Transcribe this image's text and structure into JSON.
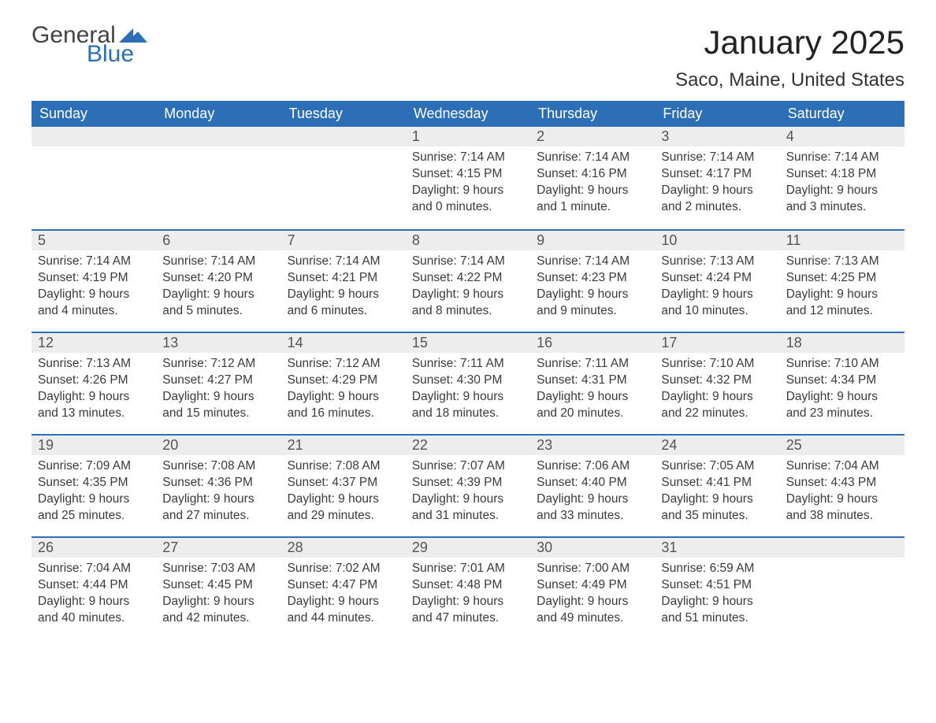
{
  "brand": {
    "general": "General",
    "blue": "Blue",
    "accent_color": "#2d6fb6"
  },
  "title": "January 2025",
  "location": "Saco, Maine, United States",
  "colors": {
    "header_bg": "#2d6fb6",
    "header_text": "#ffffff",
    "daynum_bg": "#ededed",
    "body_text": "#3a3a3a",
    "page_bg": "#ffffff"
  },
  "day_headers": [
    "Sunday",
    "Monday",
    "Tuesday",
    "Wednesday",
    "Thursday",
    "Friday",
    "Saturday"
  ],
  "weeks": [
    [
      null,
      null,
      null,
      {
        "n": "1",
        "sunrise": "7:14 AM",
        "sunset": "4:15 PM",
        "daylight": "9 hours and 0 minutes."
      },
      {
        "n": "2",
        "sunrise": "7:14 AM",
        "sunset": "4:16 PM",
        "daylight": "9 hours and 1 minute."
      },
      {
        "n": "3",
        "sunrise": "7:14 AM",
        "sunset": "4:17 PM",
        "daylight": "9 hours and 2 minutes."
      },
      {
        "n": "4",
        "sunrise": "7:14 AM",
        "sunset": "4:18 PM",
        "daylight": "9 hours and 3 minutes."
      }
    ],
    [
      {
        "n": "5",
        "sunrise": "7:14 AM",
        "sunset": "4:19 PM",
        "daylight": "9 hours and 4 minutes."
      },
      {
        "n": "6",
        "sunrise": "7:14 AM",
        "sunset": "4:20 PM",
        "daylight": "9 hours and 5 minutes."
      },
      {
        "n": "7",
        "sunrise": "7:14 AM",
        "sunset": "4:21 PM",
        "daylight": "9 hours and 6 minutes."
      },
      {
        "n": "8",
        "sunrise": "7:14 AM",
        "sunset": "4:22 PM",
        "daylight": "9 hours and 8 minutes."
      },
      {
        "n": "9",
        "sunrise": "7:14 AM",
        "sunset": "4:23 PM",
        "daylight": "9 hours and 9 minutes."
      },
      {
        "n": "10",
        "sunrise": "7:13 AM",
        "sunset": "4:24 PM",
        "daylight": "9 hours and 10 minutes."
      },
      {
        "n": "11",
        "sunrise": "7:13 AM",
        "sunset": "4:25 PM",
        "daylight": "9 hours and 12 minutes."
      }
    ],
    [
      {
        "n": "12",
        "sunrise": "7:13 AM",
        "sunset": "4:26 PM",
        "daylight": "9 hours and 13 minutes."
      },
      {
        "n": "13",
        "sunrise": "7:12 AM",
        "sunset": "4:27 PM",
        "daylight": "9 hours and 15 minutes."
      },
      {
        "n": "14",
        "sunrise": "7:12 AM",
        "sunset": "4:29 PM",
        "daylight": "9 hours and 16 minutes."
      },
      {
        "n": "15",
        "sunrise": "7:11 AM",
        "sunset": "4:30 PM",
        "daylight": "9 hours and 18 minutes."
      },
      {
        "n": "16",
        "sunrise": "7:11 AM",
        "sunset": "4:31 PM",
        "daylight": "9 hours and 20 minutes."
      },
      {
        "n": "17",
        "sunrise": "7:10 AM",
        "sunset": "4:32 PM",
        "daylight": "9 hours and 22 minutes."
      },
      {
        "n": "18",
        "sunrise": "7:10 AM",
        "sunset": "4:34 PM",
        "daylight": "9 hours and 23 minutes."
      }
    ],
    [
      {
        "n": "19",
        "sunrise": "7:09 AM",
        "sunset": "4:35 PM",
        "daylight": "9 hours and 25 minutes."
      },
      {
        "n": "20",
        "sunrise": "7:08 AM",
        "sunset": "4:36 PM",
        "daylight": "9 hours and 27 minutes."
      },
      {
        "n": "21",
        "sunrise": "7:08 AM",
        "sunset": "4:37 PM",
        "daylight": "9 hours and 29 minutes."
      },
      {
        "n": "22",
        "sunrise": "7:07 AM",
        "sunset": "4:39 PM",
        "daylight": "9 hours and 31 minutes."
      },
      {
        "n": "23",
        "sunrise": "7:06 AM",
        "sunset": "4:40 PM",
        "daylight": "9 hours and 33 minutes."
      },
      {
        "n": "24",
        "sunrise": "7:05 AM",
        "sunset": "4:41 PM",
        "daylight": "9 hours and 35 minutes."
      },
      {
        "n": "25",
        "sunrise": "7:04 AM",
        "sunset": "4:43 PM",
        "daylight": "9 hours and 38 minutes."
      }
    ],
    [
      {
        "n": "26",
        "sunrise": "7:04 AM",
        "sunset": "4:44 PM",
        "daylight": "9 hours and 40 minutes."
      },
      {
        "n": "27",
        "sunrise": "7:03 AM",
        "sunset": "4:45 PM",
        "daylight": "9 hours and 42 minutes."
      },
      {
        "n": "28",
        "sunrise": "7:02 AM",
        "sunset": "4:47 PM",
        "daylight": "9 hours and 44 minutes."
      },
      {
        "n": "29",
        "sunrise": "7:01 AM",
        "sunset": "4:48 PM",
        "daylight": "9 hours and 47 minutes."
      },
      {
        "n": "30",
        "sunrise": "7:00 AM",
        "sunset": "4:49 PM",
        "daylight": "9 hours and 49 minutes."
      },
      {
        "n": "31",
        "sunrise": "6:59 AM",
        "sunset": "4:51 PM",
        "daylight": "9 hours and 51 minutes."
      },
      null
    ]
  ],
  "labels": {
    "sunrise": "Sunrise: ",
    "sunset": "Sunset: ",
    "daylight": "Daylight: "
  }
}
